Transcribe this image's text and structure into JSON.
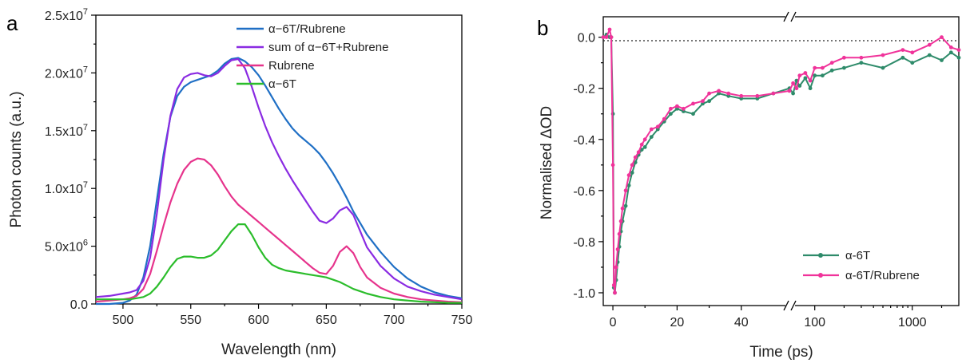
{
  "chart_data": [
    {
      "panel": "a",
      "type": "line",
      "xlabel": "Wavelength (nm)",
      "ylabel": "Photon counts (a.u.)",
      "xlim": [
        480,
        750
      ],
      "ylim": [
        0,
        25000000
      ],
      "xticks": [
        "500",
        "550",
        "600",
        "650",
        "700",
        "750"
      ],
      "yticks": [
        {
          "mant": "0.0",
          "exp": ""
        },
        {
          "mant": "5.0x10",
          "exp": "6"
        },
        {
          "mant": "1.0x10",
          "exp": "7"
        },
        {
          "mant": "1.5x10",
          "exp": "7"
        },
        {
          "mant": "2.0x10",
          "exp": "7"
        },
        {
          "mant": "2.5x10",
          "exp": "7"
        }
      ],
      "legend_position": "top-right",
      "series": [
        {
          "name": "α−6T/Rubrene",
          "color": "#1f6fc5",
          "x": [
            480,
            490,
            500,
            505,
            510,
            515,
            520,
            525,
            530,
            535,
            540,
            545,
            550,
            555,
            560,
            565,
            570,
            575,
            580,
            585,
            590,
            595,
            600,
            605,
            610,
            615,
            620,
            625,
            630,
            635,
            640,
            645,
            650,
            655,
            660,
            665,
            670,
            675,
            680,
            690,
            700,
            710,
            720,
            730,
            740,
            750
          ],
          "y": [
            0.0,
            0.0,
            0.1,
            0.3,
            0.8,
            2.3,
            5.0,
            9.0,
            13.0,
            16.2,
            18.0,
            18.8,
            19.2,
            19.4,
            19.6,
            19.8,
            20.2,
            20.8,
            21.2,
            21.3,
            21.0,
            20.5,
            19.8,
            18.9,
            17.9,
            16.9,
            16.0,
            15.2,
            14.6,
            14.1,
            13.6,
            13.0,
            12.2,
            11.3,
            10.3,
            9.2,
            8.0,
            7.0,
            6.0,
            4.5,
            3.2,
            2.2,
            1.5,
            1.0,
            0.7,
            0.5
          ]
        },
        {
          "name": "sum of α−6T+Rubrene",
          "color": "#8a2be2",
          "x": [
            480,
            490,
            500,
            505,
            510,
            515,
            520,
            525,
            530,
            535,
            540,
            545,
            550,
            555,
            560,
            565,
            570,
            575,
            580,
            585,
            590,
            595,
            600,
            605,
            610,
            615,
            620,
            625,
            630,
            635,
            640,
            645,
            650,
            655,
            660,
            665,
            670,
            675,
            680,
            690,
            700,
            710,
            720,
            730,
            740,
            750
          ],
          "y": [
            0.6,
            0.7,
            0.9,
            1.0,
            1.2,
            2.0,
            4.0,
            7.8,
            12.5,
            16.3,
            18.6,
            19.6,
            19.9,
            20.0,
            19.8,
            19.7,
            20.0,
            20.6,
            21.1,
            21.2,
            20.4,
            18.8,
            17.0,
            15.4,
            14.0,
            12.8,
            11.7,
            10.7,
            9.8,
            8.9,
            8.0,
            7.2,
            7.0,
            7.4,
            8.1,
            8.4,
            7.7,
            6.3,
            4.9,
            3.3,
            2.2,
            1.5,
            1.1,
            0.8,
            0.6,
            0.4
          ]
        },
        {
          "name": "Rubrene",
          "color": "#e6338c",
          "x": [
            480,
            490,
            500,
            505,
            510,
            515,
            520,
            525,
            530,
            535,
            540,
            545,
            550,
            555,
            560,
            565,
            570,
            575,
            580,
            585,
            590,
            595,
            600,
            605,
            610,
            615,
            620,
            625,
            630,
            635,
            640,
            645,
            650,
            655,
            660,
            665,
            670,
            675,
            680,
            690,
            700,
            710,
            720,
            730,
            740,
            750
          ],
          "y": [
            0.2,
            0.3,
            0.4,
            0.5,
            0.7,
            1.3,
            2.6,
            4.6,
            6.8,
            8.8,
            10.4,
            11.6,
            12.3,
            12.6,
            12.5,
            12.0,
            11.2,
            10.2,
            9.3,
            8.6,
            8.1,
            7.6,
            7.1,
            6.6,
            6.1,
            5.6,
            5.1,
            4.6,
            4.1,
            3.6,
            3.1,
            2.7,
            2.6,
            3.3,
            4.5,
            5.0,
            4.4,
            3.2,
            2.3,
            1.4,
            0.9,
            0.6,
            0.4,
            0.3,
            0.2,
            0.15
          ]
        },
        {
          "name": "α−6T",
          "color": "#2bbd2b",
          "x": [
            480,
            490,
            500,
            505,
            510,
            515,
            520,
            525,
            530,
            535,
            540,
            545,
            550,
            555,
            560,
            565,
            570,
            575,
            580,
            585,
            590,
            595,
            600,
            605,
            610,
            615,
            620,
            625,
            630,
            635,
            640,
            645,
            650,
            655,
            660,
            665,
            670,
            675,
            680,
            690,
            700,
            710,
            720,
            730,
            740,
            750
          ],
          "y": [
            0.4,
            0.4,
            0.4,
            0.4,
            0.5,
            0.6,
            0.9,
            1.5,
            2.3,
            3.2,
            3.9,
            4.1,
            4.1,
            4.0,
            4.0,
            4.2,
            4.7,
            5.5,
            6.3,
            6.9,
            6.9,
            6.0,
            4.9,
            4.0,
            3.4,
            3.1,
            2.9,
            2.8,
            2.7,
            2.6,
            2.5,
            2.4,
            2.3,
            2.1,
            1.9,
            1.6,
            1.3,
            1.1,
            0.9,
            0.6,
            0.4,
            0.3,
            0.2,
            0.15,
            0.1,
            0.1
          ]
        }
      ]
    },
    {
      "panel": "b",
      "type": "line",
      "xlabel": "Time (ps)",
      "ylabel": "Normalised ΔOD",
      "x_axis": "broken: linear -3 to 55 ps, then log 55 to 3000 ps",
      "ylim": [
        -1.05,
        0.08
      ],
      "xticks_linear": [
        "0",
        "20",
        "40"
      ],
      "xticks_log": [
        "100",
        "1000"
      ],
      "yticks": [
        "-1.0",
        "-0.8",
        "-0.6",
        "-0.4",
        "-0.2",
        "0.0"
      ],
      "zero_line": "dotted",
      "legend_position": "bottom-right",
      "series": [
        {
          "name": "α-6T",
          "color": "#2e8b6a",
          "x": [
            -3,
            -2,
            -1,
            -0.5,
            0,
            0.3,
            0.6,
            1,
            1.5,
            2,
            2.5,
            3,
            4,
            5,
            6,
            7,
            8,
            9,
            10,
            12,
            14,
            16,
            18,
            20,
            22,
            25,
            28,
            30,
            33,
            36,
            40,
            45,
            50,
            55,
            60,
            65,
            70,
            80,
            90,
            100,
            120,
            150,
            200,
            300,
            500,
            800,
            1000,
            1500,
            2000,
            2500,
            3000
          ],
          "y": [
            0.0,
            0.01,
            0.0,
            0.0,
            -0.3,
            -0.98,
            -1.0,
            -0.95,
            -0.88,
            -0.82,
            -0.76,
            -0.72,
            -0.66,
            -0.58,
            -0.53,
            -0.49,
            -0.46,
            -0.44,
            -0.43,
            -0.39,
            -0.36,
            -0.33,
            -0.3,
            -0.28,
            -0.29,
            -0.3,
            -0.26,
            -0.25,
            -0.22,
            -0.23,
            -0.24,
            -0.24,
            -0.22,
            -0.2,
            -0.22,
            -0.17,
            -0.19,
            -0.16,
            -0.2,
            -0.15,
            -0.15,
            -0.13,
            -0.12,
            -0.1,
            -0.12,
            -0.08,
            -0.1,
            -0.07,
            -0.09,
            -0.06,
            -0.08
          ]
        },
        {
          "name": "α-6T/Rubrene",
          "color": "#f0339a",
          "x": [
            -3,
            -2,
            -1,
            -0.5,
            0,
            0.3,
            0.6,
            1,
            1.5,
            2,
            2.5,
            3,
            4,
            5,
            6,
            7,
            8,
            9,
            10,
            12,
            14,
            16,
            18,
            20,
            22,
            25,
            28,
            30,
            33,
            36,
            40,
            45,
            50,
            55,
            60,
            65,
            70,
            80,
            90,
            100,
            120,
            150,
            200,
            300,
            500,
            800,
            1000,
            1500,
            2000,
            2500,
            3000
          ],
          "y": [
            0.0,
            0.0,
            0.03,
            0.0,
            -0.5,
            -0.97,
            -1.0,
            -0.9,
            -0.83,
            -0.77,
            -0.72,
            -0.67,
            -0.6,
            -0.54,
            -0.5,
            -0.47,
            -0.45,
            -0.42,
            -0.4,
            -0.36,
            -0.35,
            -0.32,
            -0.28,
            -0.27,
            -0.28,
            -0.26,
            -0.25,
            -0.22,
            -0.21,
            -0.22,
            -0.23,
            -0.23,
            -0.22,
            -0.21,
            -0.18,
            -0.2,
            -0.15,
            -0.14,
            -0.17,
            -0.12,
            -0.12,
            -0.1,
            -0.08,
            -0.08,
            -0.07,
            -0.05,
            -0.06,
            -0.03,
            0.0,
            -0.04,
            -0.05
          ]
        }
      ]
    }
  ]
}
